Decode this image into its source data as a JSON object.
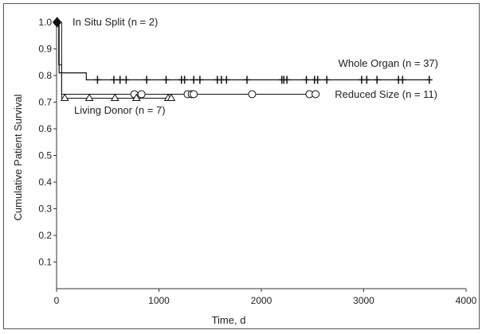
{
  "chart_data": {
    "type": "line",
    "subtype": "kaplan-meier survival curve",
    "title": "",
    "xlabel": "Time, d",
    "ylabel": "Cumulative Patient Survival",
    "xlim": [
      0,
      4000
    ],
    "ylim": [
      0,
      1.0
    ],
    "x_ticks": [
      0,
      1000,
      2000,
      3000,
      4000
    ],
    "y_ticks": [
      0.1,
      0.2,
      0.3,
      0.4,
      0.5,
      0.6,
      0.7,
      0.8,
      0.9,
      1.0
    ],
    "x_tick_labels": [
      "0",
      "1000",
      "2000",
      "3000",
      "4000"
    ],
    "y_tick_labels": [
      "0.1",
      "0.2",
      "0.3",
      "0.4",
      "0.5",
      "0.6",
      "0.7",
      "0.8",
      "0.9",
      "1.0"
    ],
    "grid": false,
    "series": [
      {
        "name": "In Situ Split (n = 2)",
        "censor_marker": "diamond",
        "color": "#111111",
        "x": [
          0,
          5
        ],
        "y": [
          1.0,
          1.0
        ],
        "censored_x": [
          5
        ]
      },
      {
        "name": "Whole Organ (n = 37)",
        "censor_marker": "plus",
        "color": "#111111",
        "x": [
          0,
          25,
          25,
          290,
          290,
          3650
        ],
        "y": [
          1.0,
          1.0,
          0.81,
          0.81,
          0.784,
          0.784
        ],
        "censored_x": [
          400,
          560,
          620,
          680,
          880,
          1070,
          1220,
          1250,
          1340,
          1400,
          1570,
          1610,
          1660,
          1860,
          2200,
          2220,
          2250,
          2440,
          2520,
          2550,
          2640,
          2980,
          3030,
          3130,
          3340,
          3380,
          3640
        ]
      },
      {
        "name": "Reduced Size (n = 11)",
        "censor_marker": "circle",
        "color": "#111111",
        "x": [
          0,
          20,
          20,
          50,
          50,
          2550
        ],
        "y": [
          1.0,
          1.0,
          0.84,
          0.84,
          0.73,
          0.73
        ],
        "censored_x": [
          760,
          830,
          1280,
          1320,
          1340,
          1910,
          2470,
          2530
        ]
      },
      {
        "name": "Living Donor (n = 7)",
        "censor_marker": "triangle",
        "color": "#111111",
        "x": [
          0,
          50,
          50,
          1120
        ],
        "y": [
          1.0,
          1.0,
          0.715,
          0.715
        ],
        "censored_x": [
          80,
          320,
          570,
          780,
          1090,
          1120
        ]
      }
    ],
    "legend": "inline labels next to each curve"
  }
}
